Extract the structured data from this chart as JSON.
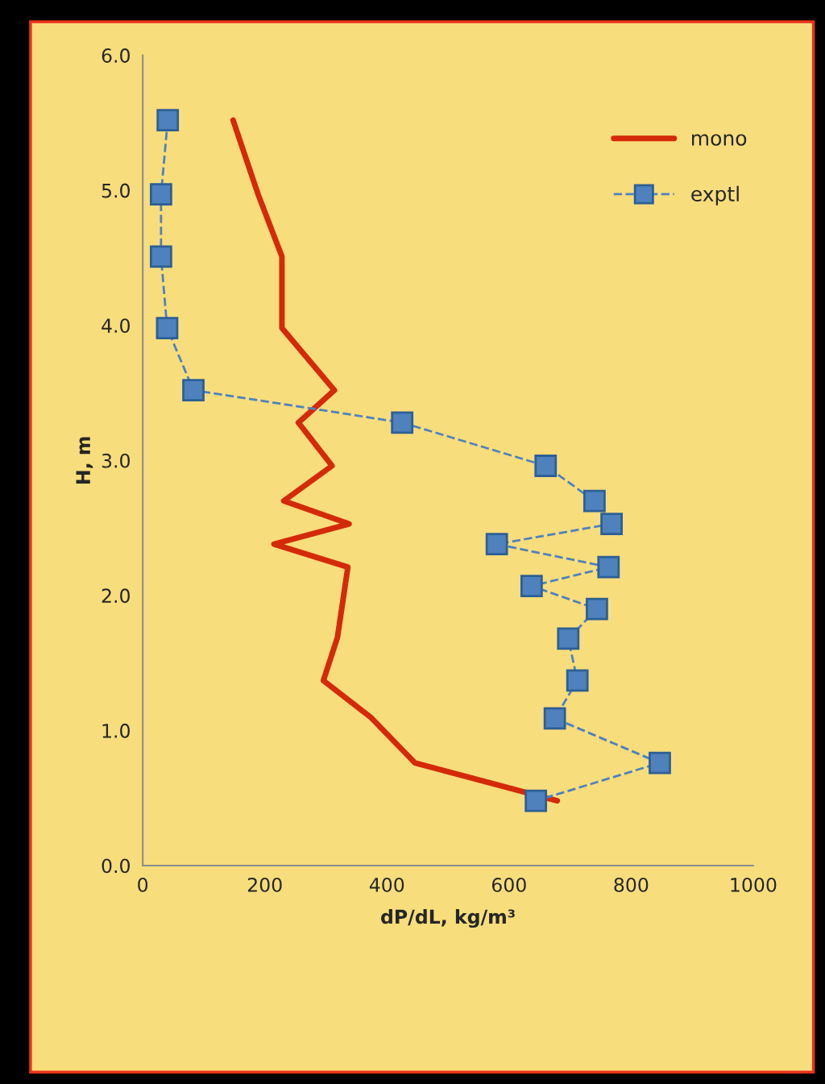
{
  "chart_data": {
    "type": "line",
    "xlabel": "dP/dL, kg/m³",
    "ylabel": "H, m",
    "xlim": [
      0,
      1000
    ],
    "ylim": [
      0,
      6
    ],
    "xticks": [
      0,
      200,
      400,
      600,
      800,
      1000
    ],
    "yticks": [
      {
        "value": 0,
        "label": "0.0"
      },
      {
        "value": 1,
        "label": "1.0"
      },
      {
        "value": 2,
        "label": "2.0"
      },
      {
        "value": 3,
        "label": "3.0"
      },
      {
        "value": 4,
        "label": "4.0"
      },
      {
        "value": 5,
        "label": "5.0"
      },
      {
        "value": 6,
        "label": "6.0"
      }
    ],
    "grid": false,
    "legend": "top right",
    "series": [
      {
        "name": "mono",
        "color": "#d42a0a",
        "marker": "none",
        "line_style": "solid",
        "x": [
          148,
          189,
          228,
          228,
          314,
          255,
          310,
          231,
          338,
          215,
          336,
          319,
          296,
          373,
          446,
          679
        ],
        "values": [
          5.52,
          4.97,
          4.51,
          3.98,
          3.52,
          3.28,
          2.96,
          2.7,
          2.53,
          2.38,
          2.21,
          1.69,
          1.37,
          1.1,
          0.76,
          0.48
        ]
      },
      {
        "name": "exptl",
        "color": "#4f81bd",
        "marker": "square",
        "line_style": "dashed",
        "x": [
          41,
          30,
          30,
          40,
          83,
          425,
          660,
          740,
          768,
          580,
          763,
          637,
          744,
          697,
          712,
          675,
          847,
          644
        ],
        "values": [
          5.52,
          4.97,
          4.51,
          3.98,
          3.52,
          3.28,
          2.96,
          2.7,
          2.53,
          2.38,
          2.21,
          2.07,
          1.9,
          1.68,
          1.37,
          1.09,
          0.76,
          0.48
        ]
      }
    ]
  }
}
